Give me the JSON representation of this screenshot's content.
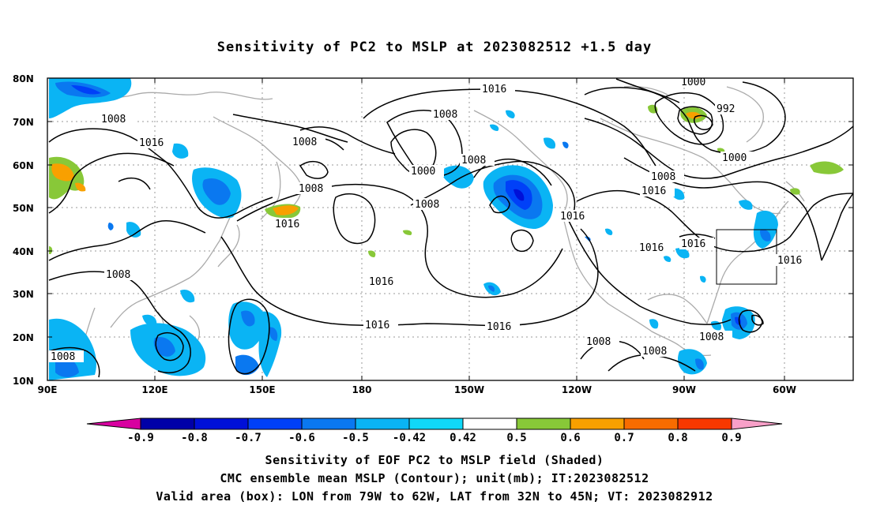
{
  "title": "Sensitivity of PC2 to MSLP at 2023082512 +1.5 day",
  "map": {
    "lat_labels": [
      "80N",
      "70N",
      "60N",
      "50N",
      "40N",
      "30N",
      "20N",
      "10N"
    ],
    "lon_labels": [
      "90E",
      "120E",
      "150E",
      "180",
      "150W",
      "120W",
      "90W",
      "60W"
    ],
    "contour_labels": [
      {
        "text": "1016",
        "name": "contour-label-1016-npac-north"
      },
      {
        "text": "1008",
        "name": "contour-label-1008-siberia"
      },
      {
        "text": "1008",
        "name": "contour-label-1008-okhotsk"
      },
      {
        "text": "1016",
        "name": "contour-label-1016-central-asia"
      },
      {
        "text": "1008",
        "name": "contour-label-1008-east-siberia"
      },
      {
        "text": "1008",
        "name": "contour-label-1008-kamchatka"
      },
      {
        "text": "1016",
        "name": "contour-label-1016-japan"
      },
      {
        "text": "1008",
        "name": "contour-label-1008-china"
      },
      {
        "text": "1008",
        "name": "contour-label-1008-bering"
      },
      {
        "text": "1000",
        "name": "contour-label-1000-aleutian"
      },
      {
        "text": "1008",
        "name": "contour-label-1008-gulf-alaska"
      },
      {
        "text": "1016",
        "name": "contour-label-1016-alaska"
      },
      {
        "text": "1016",
        "name": "contour-label-1016-pnw"
      },
      {
        "text": "1016",
        "name": "contour-label-1016-pacific-high-west"
      },
      {
        "text": "1016",
        "name": "contour-label-1016-pacific-south"
      },
      {
        "text": "1016",
        "name": "contour-label-1016-pacific-southeast"
      },
      {
        "text": "1000",
        "name": "contour-label-1000-greenland-north"
      },
      {
        "text": "992",
        "name": "contour-label-992-greenland"
      },
      {
        "text": "1000",
        "name": "contour-label-1000-labrador"
      },
      {
        "text": "1008",
        "name": "contour-label-1008-hudson"
      },
      {
        "text": "1016",
        "name": "contour-label-1016-canada"
      },
      {
        "text": "1016",
        "name": "contour-label-1016-great-lakes"
      },
      {
        "text": "1016",
        "name": "contour-label-1016-atlantic"
      },
      {
        "text": "1008",
        "name": "contour-label-1008-mexico"
      },
      {
        "text": "1008",
        "name": "contour-label-1008-central-america"
      },
      {
        "text": "1008",
        "name": "contour-label-1008-caribbean"
      },
      {
        "text": "1008",
        "name": "contour-label-1008-india"
      }
    ]
  },
  "colorbar": {
    "labels": [
      "-0.9",
      "-0.8",
      "-0.7",
      "-0.6",
      "-0.5",
      "-0.42",
      "0.42",
      "0.5",
      "0.6",
      "0.7",
      "0.8",
      "0.9"
    ],
    "colors": [
      "#0000a8",
      "#0010d8",
      "#0040f8",
      "#0a78f0",
      "#0ab4f4",
      "#10d8f8",
      "#ffffff",
      "#88c838",
      "#f8a000",
      "#f86c00",
      "#f83800",
      "#f80000"
    ],
    "end_low": "#d800a0",
    "end_high": "#f8a0c8"
  },
  "captions": {
    "line1": "Sensitivity of EOF PC2 to MSLP field (Shaded)",
    "line2": "CMC ensemble mean MSLP (Contour); unit(mb); IT:2023082512",
    "line3": "Valid area (box): LON from 79W to 62W, LAT from 32N to 45N; VT: 2023082912"
  }
}
